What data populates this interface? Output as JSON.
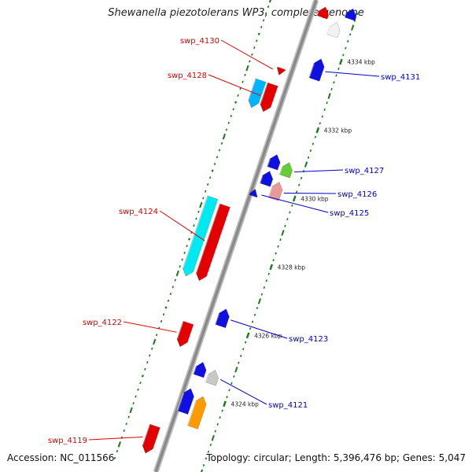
{
  "title": "Shewanella piezotolerans WP3, complete genome",
  "footer": {
    "accession": "Accession: NC_011566",
    "topology": "Topology: circular; Length: 5,396,476 bp; Genes: 5,047"
  },
  "genome_map": {
    "scale_marks_kbp": [
      4334,
      4332,
      4330,
      4328,
      4326,
      4324
    ],
    "scale_labels": [
      "4334 kbp",
      "4332 kbp",
      "4330 kbp",
      "4328 kbp",
      "4326 kbp",
      "4324 kbp"
    ],
    "colors": {
      "backbone": "#8a8a8a",
      "forward_label": "#0000cc",
      "reverse_label": "#e00000",
      "tick_major": "#1a7a1a"
    },
    "genes": [
      {
        "id": "g-top-red",
        "label": "",
        "strand": "+",
        "color": "#e30000",
        "start": 4335.3,
        "end": 4335.0
      },
      {
        "id": "g-top-white",
        "label": "",
        "strand": "+",
        "color": "#f2f2f2",
        "start": 4335.0,
        "end": 4334.6
      },
      {
        "id": "g-top-blue",
        "label": "",
        "strand": "+",
        "color": "#1010e0",
        "start": 4335.5,
        "end": 4335.2
      },
      {
        "id": "g-4131",
        "label": "swp_4131",
        "strand": "+",
        "color": "#1010e0",
        "start": 4333.9,
        "end": 4333.3
      },
      {
        "id": "g-4130",
        "label": "swp_4130",
        "strand": "-",
        "color": "#e30000",
        "start": 4333.3,
        "end": 4333.1
      },
      {
        "id": "g-4128",
        "label": "swp_4128",
        "strand": "-",
        "color": "#e30000",
        "start": 4332.8,
        "end": 4332.0
      },
      {
        "id": "g-4129",
        "label": "",
        "strand": "-",
        "color": "#00b4ff",
        "start": 4332.8,
        "end": 4332.0
      },
      {
        "id": "g-4127",
        "label": "swp_4127",
        "strand": "+",
        "color": "#66cc33",
        "start": 4330.9,
        "end": 4330.5
      },
      {
        "id": "g-4127b",
        "label": "",
        "strand": "+",
        "color": "#1010e0",
        "start": 4331.0,
        "end": 4330.6
      },
      {
        "id": "g-4126",
        "label": "swp_4126",
        "strand": "+",
        "color": "#e89a9a",
        "start": 4330.3,
        "end": 4329.8
      },
      {
        "id": "g-4126b",
        "label": "",
        "strand": "+",
        "color": "#1010e0",
        "start": 4330.5,
        "end": 4330.1
      },
      {
        "id": "g-4125",
        "label": "swp_4125",
        "strand": "+",
        "color": "#1010e0",
        "start": 4329.9,
        "end": 4329.7
      },
      {
        "id": "g-4124",
        "label": "swp_4124",
        "strand": "-",
        "color": "#e30000",
        "start": 4329.2,
        "end": 4327.0
      },
      {
        "id": "g-4124b",
        "label": "",
        "strand": "-",
        "color": "#00e8f0",
        "start": 4329.3,
        "end": 4327.0
      },
      {
        "id": "g-4123",
        "label": "swp_4123",
        "strand": "+",
        "color": "#1010e0",
        "start": 4326.5,
        "end": 4326.0
      },
      {
        "id": "g-4122",
        "label": "swp_4122",
        "strand": "-",
        "color": "#e30000",
        "start": 4325.8,
        "end": 4325.1
      },
      {
        "id": "g-4121",
        "label": "swp_4121",
        "strand": "+",
        "color": "#c8c8c8",
        "start": 4324.8,
        "end": 4324.4
      },
      {
        "id": "g-4121b",
        "label": "",
        "strand": "+",
        "color": "#1010e0",
        "start": 4324.9,
        "end": 4324.5
      },
      {
        "id": "g-4120",
        "label": "",
        "strand": "+",
        "color": "#ff9a00",
        "start": 4324.0,
        "end": 4323.1
      },
      {
        "id": "g-4120b",
        "label": "",
        "strand": "+",
        "color": "#1010e0",
        "start": 4324.1,
        "end": 4323.4
      },
      {
        "id": "g-4119",
        "label": "swp_4119",
        "strand": "-",
        "color": "#e30000",
        "start": 4322.8,
        "end": 4322.0
      }
    ]
  }
}
